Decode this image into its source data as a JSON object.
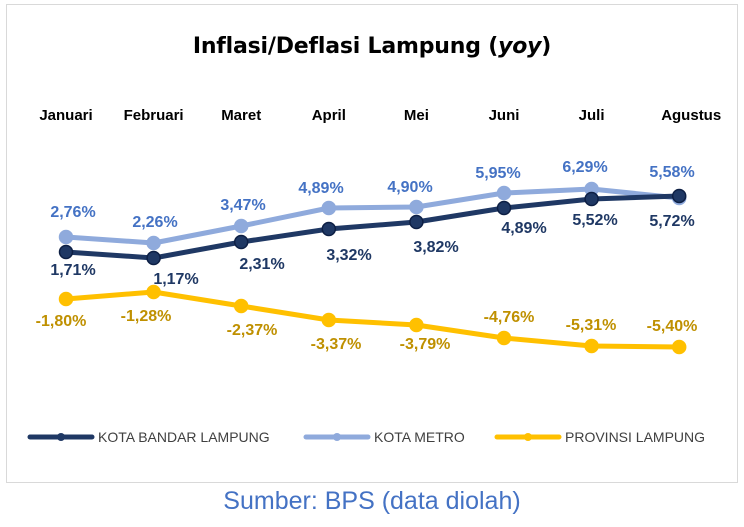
{
  "title_main": "Inflasi/Deflasi Lampung (",
  "title_italic": "yoy",
  "title_end": ")",
  "source": "Sumber: BPS (data diolah)",
  "chart_data": {
    "type": "line",
    "title": "Inflasi/Deflasi Lampung (yoy)",
    "categories": [
      "Januari",
      "Februari",
      "Maret",
      "April",
      "Mei",
      "Juni",
      "Juli",
      "Agustus"
    ],
    "series": [
      {
        "name": "KOTA BANDAR LAMPUNG",
        "color": "#1f3864",
        "values": [
          1.71,
          1.17,
          2.31,
          3.32,
          3.82,
          4.89,
          5.52,
          5.72
        ],
        "labels": [
          "1,71%",
          "1,17%",
          "2,31%",
          "3,32%",
          "3,82%",
          "4,89%",
          "5,52%",
          "5,72%"
        ]
      },
      {
        "name": "KOTA METRO",
        "color": "#8faadc",
        "values": [
          2.76,
          2.26,
          3.47,
          4.89,
          4.9,
          5.95,
          6.29,
          5.58
        ],
        "labels": [
          "2,76%",
          "2,26%",
          "3,47%",
          "4,89%",
          "4,90%",
          "5,95%",
          "6,29%",
          "5,58%"
        ]
      },
      {
        "name": "PROVINSI LAMPUNG",
        "color": "#ffc000",
        "values": [
          -1.8,
          -1.28,
          -2.37,
          -3.37,
          -3.79,
          -4.76,
          -5.31,
          -5.4
        ],
        "labels": [
          "-1,80%",
          "-1,28%",
          "-2,37%",
          "-3,37%",
          "-3,79%",
          "-4,76%",
          "-5,31%",
          "-5,40%"
        ]
      }
    ],
    "label_colors": {
      "KOTA BANDAR LAMPUNG": "#1f3864",
      "KOTA METRO": "#4472c4",
      "PROVINSI LAMPUNG": "#bf9000"
    },
    "xlabel": "",
    "ylabel": "",
    "category_axis_position": "top",
    "grid": false,
    "legend": "bottom"
  }
}
